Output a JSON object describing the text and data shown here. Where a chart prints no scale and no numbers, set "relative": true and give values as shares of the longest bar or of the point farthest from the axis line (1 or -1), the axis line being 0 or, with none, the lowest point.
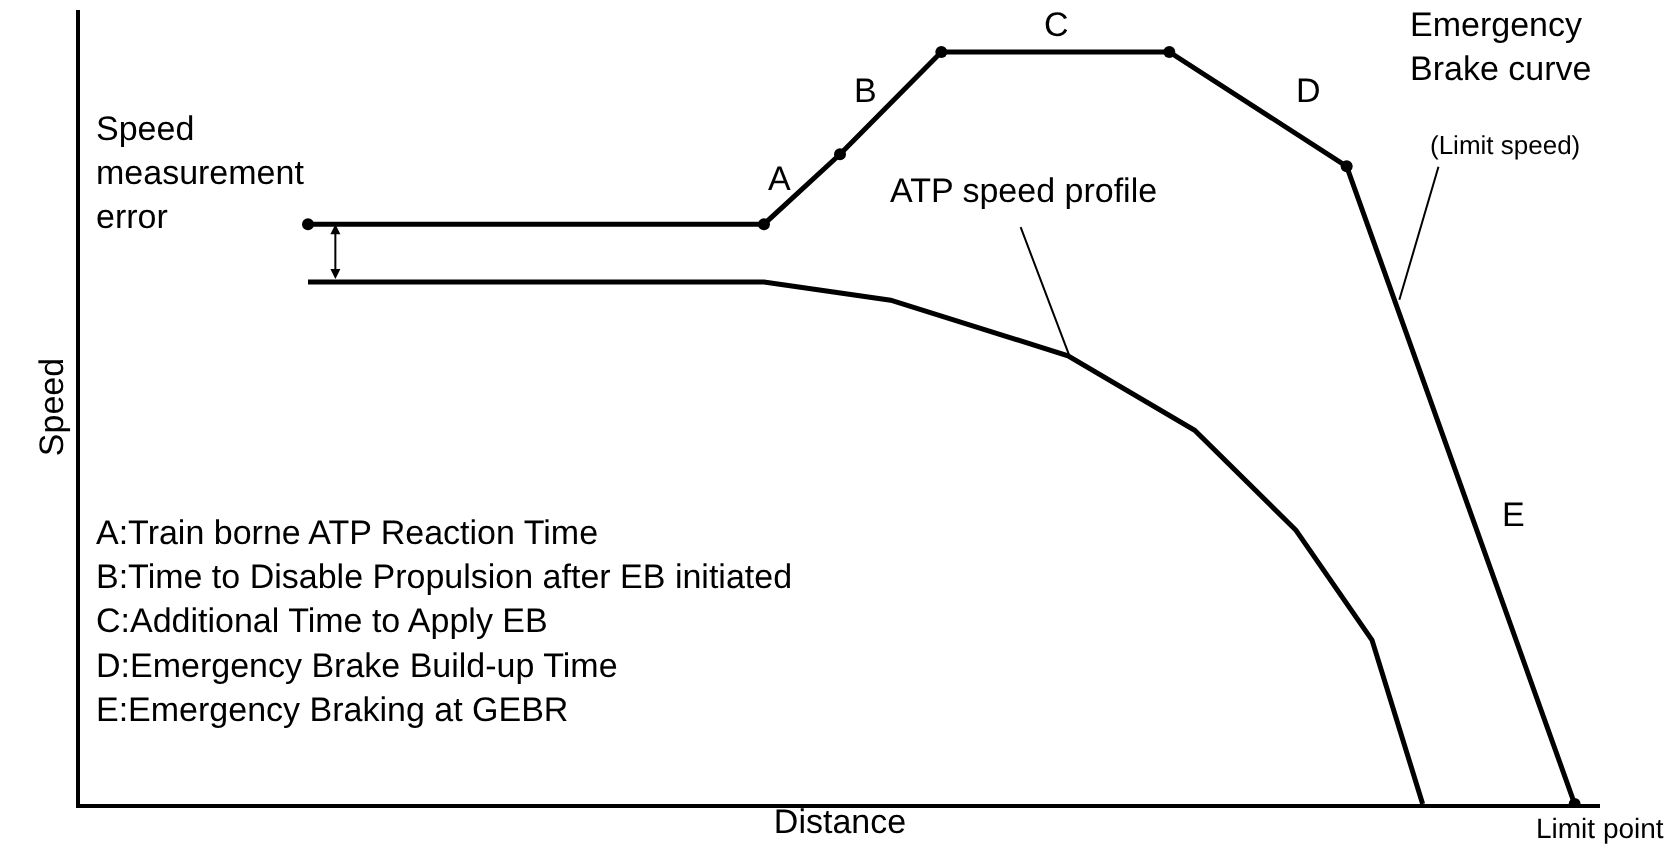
{
  "chart_data": {
    "type": "line",
    "relative": true,
    "xlabel": "Distance",
    "ylabel": "Speed",
    "tick_labels": false,
    "legend": false,
    "categories": [
      null,
      null,
      null,
      null,
      null,
      null,
      null,
      null,
      null,
      null,
      null,
      null,
      null,
      null,
      null,
      null,
      null,
      null,
      null,
      null,
      null,
      null,
      null,
      null,
      null,
      null,
      null,
      null,
      null,
      null,
      null,
      null,
      null,
      null,
      null,
      null,
      null,
      null,
      null,
      null,
      null,
      null,
      null,
      null,
      null,
      null,
      null,
      null,
      null,
      null,
      null,
      null,
      null,
      null,
      null,
      null,
      null,
      null,
      null,
      null
    ],
    "series": [
      {
        "name": "Emergency Brake curve",
        "color": "#000000",
        "marker": "circle",
        "line_style": "solid",
        "values": [
          null,
          null,
          null,
          null,
          null,
          null,
          null,
          null,
          null,
          0.771,
          null,
          null,
          null,
          null,
          null,
          null,
          null,
          null,
          null,
          null,
          null,
          null,
          null,
          null,
          null,
          null,
          null,
          0.771,
          null,
          null,
          0.864,
          null,
          null,
          null,
          1.0,
          null,
          null,
          null,
          null,
          null,
          null,
          null,
          null,
          1.0,
          null,
          null,
          null,
          null,
          null,
          null,
          0.848,
          null,
          null,
          null,
          null,
          null,
          null,
          null,
          null,
          0.0
        ]
      },
      {
        "name": "ATP speed profile",
        "color": "#000000",
        "marker": "none",
        "line_style": "solid",
        "values": [
          null,
          null,
          null,
          null,
          null,
          null,
          null,
          null,
          null,
          0.694,
          null,
          null,
          null,
          null,
          null,
          null,
          null,
          null,
          null,
          null,
          null,
          null,
          null,
          null,
          null,
          null,
          null,
          0.694,
          null,
          null,
          null,
          null,
          0.67,
          null,
          null,
          null,
          null,
          null,
          null,
          0.596,
          null,
          null,
          null,
          null,
          0.497,
          null,
          null,
          null,
          0.364,
          null,
          null,
          0.218,
          null,
          0.0,
          null,
          null,
          null,
          null,
          null,
          null
        ]
      }
    ],
    "annotations": [
      "A",
      "B",
      "C",
      "D",
      "E",
      "(Limit speed)",
      "Speed\nmeasurement\nerror",
      "A:Train borne ATP Reaction Time\nB:Time to Disable Propulsion after EB initiated\nC:Additional Time to Apply EB\nD:Emergency Brake Build-up Time\nE:Emergency Braking at GEBR",
      "Limit point"
    ]
  }
}
